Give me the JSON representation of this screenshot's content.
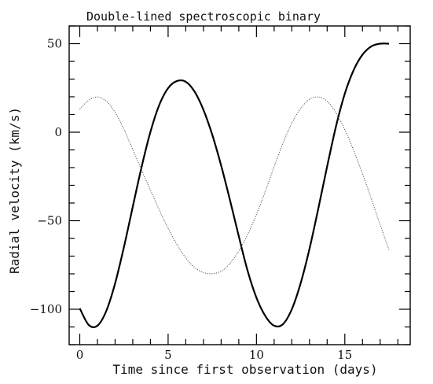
{
  "chart_data": {
    "type": "line",
    "title": "Double-lined spectroscopic binary",
    "xlabel": "Time since first observation (days)",
    "ylabel": "Radial velocity (km/s)",
    "xlim": [
      -0.6,
      18.7
    ],
    "ylim": [
      -120,
      60
    ],
    "xticks_major": [
      0,
      5,
      10,
      15
    ],
    "xtick_labels": [
      "0",
      "5",
      "10",
      "15"
    ],
    "yticks_major": [
      50,
      0,
      -50,
      -100
    ],
    "ytick_labels": [
      "50",
      "0",
      "−50",
      "−100"
    ],
    "grid": false,
    "legend": "none",
    "x": [
      0,
      0.5,
      1,
      1.5,
      2,
      2.5,
      3,
      3.5,
      4,
      4.5,
      5,
      5.5,
      6,
      6.5,
      7,
      7.5,
      8,
      8.5,
      9,
      9.5,
      10,
      10.5,
      11,
      11.5,
      12,
      12.5,
      13,
      13.5,
      14,
      14.5,
      15,
      15.5,
      16,
      16.5,
      17,
      17.5
    ],
    "series": [
      {
        "color": "#000000",
        "style": "thick",
        "values": [
          -99.5,
          -108.8,
          -109.3,
          -101.0,
          -85.4,
          -64.9,
          -42.1,
          -19.6,
          0.2,
          15.4,
          24.9,
          28.9,
          28.5,
          22.9,
          12.6,
          -1.5,
          -18.8,
          -38.3,
          -58.8,
          -78.3,
          -93.5,
          -103.8,
          -109.3,
          -108.4,
          -100.0,
          -85.3,
          -65.9,
          -43.1,
          -19.3,
          3.3,
          21.8,
          35.1,
          43.8,
          48.5,
          50.0,
          50.0
        ]
      },
      {
        "color": "#555555",
        "style": "dotted",
        "values": [
          13.0,
          18.0,
          19.9,
          17.6,
          11.2,
          1.6,
          -9.7,
          -21.4,
          -32.7,
          -43.9,
          -54.3,
          -63.4,
          -71.0,
          -76.4,
          -79.3,
          -79.9,
          -78.5,
          -74.1,
          -67.1,
          -57.8,
          -46.4,
          -33.4,
          -19.5,
          -6.2,
          5.1,
          13.4,
          18.6,
          19.9,
          17.5,
          11.0,
          1.4,
          -10.3,
          -23.4,
          -37.6,
          -52.3,
          -66.5
        ]
      }
    ]
  }
}
